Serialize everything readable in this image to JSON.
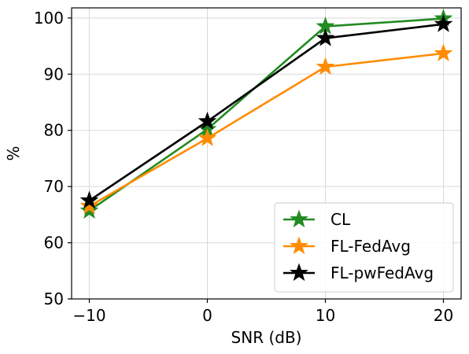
{
  "chart_data": {
    "type": "line",
    "title": "",
    "xlabel": "SNR (dB)",
    "ylabel": "%",
    "x": [
      -10,
      0,
      10,
      20
    ],
    "x_tick_values": [
      -10,
      0,
      10,
      20
    ],
    "x_tick_labels": [
      "−10",
      "0",
      "10",
      "20"
    ],
    "y_tick_values": [
      50,
      60,
      70,
      80,
      90,
      100
    ],
    "y_tick_labels": [
      "50",
      "60",
      "70",
      "80",
      "90",
      "100"
    ],
    "xlim": [
      -11.5,
      21.5
    ],
    "ylim": [
      50,
      101.8
    ],
    "grid": true,
    "legend_position": "lower-right",
    "marker": "star",
    "series": [
      {
        "name": "CL",
        "color": "#228b22",
        "values": [
          65.7,
          80.2,
          98.5,
          99.9
        ]
      },
      {
        "name": "FL-FedAvg",
        "color": "#ff8c00",
        "values": [
          66.5,
          78.6,
          91.3,
          93.7
        ]
      },
      {
        "name": "FL-pwFedAvg",
        "color": "#000000",
        "values": [
          67.5,
          81.6,
          96.4,
          98.9
        ]
      }
    ]
  }
}
